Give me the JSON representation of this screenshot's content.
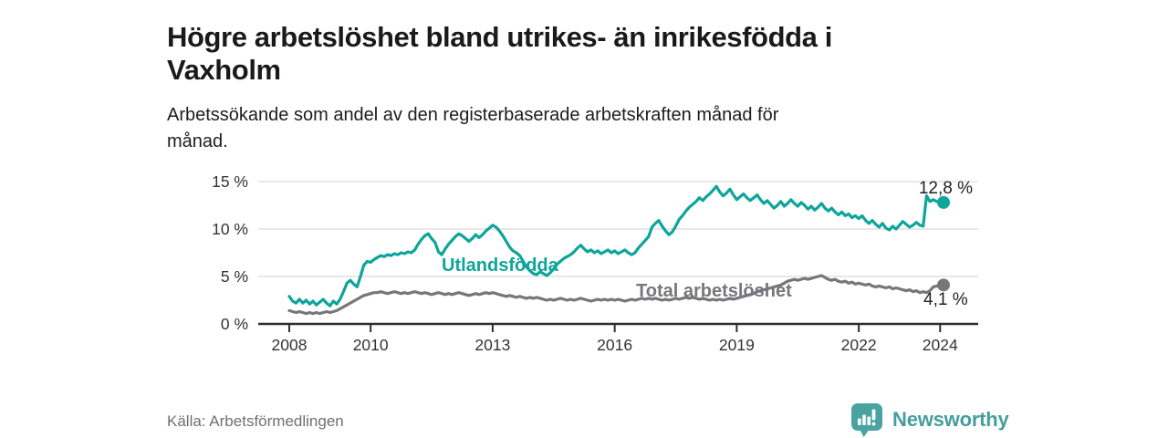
{
  "header": {
    "title": "Högre arbetslöshet bland utrikes- än inrikesfödda i\nVaxholm",
    "subtitle": "Arbetssökande som andel av den registerbaserade arbetskraften månad för\nmånad."
  },
  "footer": {
    "source": "Källa: Arbetsförmedlingen",
    "brand": "Newsworthy"
  },
  "colors": {
    "teal_line": "#0da59b",
    "gray_line": "#76767b",
    "grid": "#d9d9d9",
    "axis": "#2e2e2e",
    "tick_text": "#333333",
    "value_text": "#222222",
    "source_text": "#6f6f74",
    "brand_teal": "#4aa3a0"
  },
  "chart_data": {
    "type": "line",
    "title": "Högre arbetslöshet bland utrikes- än inrikesfödda i Vaxholm",
    "subtitle": "Arbetssökande som andel av den registerbaserade arbetskraften månad för månad.",
    "unit": "%",
    "x_unit": "month",
    "x_start": "2008-01",
    "x_end": "2024-02",
    "xlim": [
      2007.2,
      2024.95
    ],
    "ylim": [
      0,
      15.6
    ],
    "grid": "horizontal",
    "legend_position": "inline-labels",
    "x_ticks": [
      {
        "year": 2008,
        "label": "2008"
      },
      {
        "year": 2010,
        "label": "2010"
      },
      {
        "year": 2013,
        "label": "2013"
      },
      {
        "year": 2016,
        "label": "2016"
      },
      {
        "year": 2019,
        "label": "2019"
      },
      {
        "year": 2022,
        "label": "2022"
      },
      {
        "year": 2024,
        "label": "2024"
      }
    ],
    "y_ticks": [
      {
        "value": 0,
        "label": "0 %"
      },
      {
        "value": 5,
        "label": "5 %"
      },
      {
        "value": 10,
        "label": "10 %"
      },
      {
        "value": 15,
        "label": "15 %"
      }
    ],
    "series": [
      {
        "name": "Total arbetslöshet",
        "color": "#76767b",
        "inline_label": {
          "text": "Total arbetslöshet",
          "x": 697,
          "y": 325,
          "anchor": "start"
        },
        "end_label": {
          "text": "4,1 %",
          "x": 1012,
          "y": 334,
          "anchor": "start"
        },
        "end_value": 4.1,
        "values": [
          1.4,
          1.3,
          1.2,
          1.3,
          1.2,
          1.1,
          1.2,
          1.1,
          1.2,
          1.1,
          1.2,
          1.3,
          1.2,
          1.3,
          1.4,
          1.6,
          1.8,
          2.0,
          2.2,
          2.4,
          2.6,
          2.8,
          3.0,
          3.1,
          3.2,
          3.3,
          3.3,
          3.4,
          3.3,
          3.2,
          3.3,
          3.4,
          3.3,
          3.2,
          3.3,
          3.2,
          3.3,
          3.4,
          3.3,
          3.2,
          3.3,
          3.2,
          3.1,
          3.2,
          3.3,
          3.2,
          3.1,
          3.2,
          3.1,
          3.2,
          3.3,
          3.2,
          3.1,
          3.0,
          3.1,
          3.2,
          3.1,
          3.2,
          3.3,
          3.2,
          3.3,
          3.2,
          3.1,
          3.0,
          2.9,
          3.0,
          2.9,
          2.8,
          2.9,
          2.8,
          2.7,
          2.8,
          2.7,
          2.8,
          2.7,
          2.6,
          2.5,
          2.6,
          2.5,
          2.6,
          2.7,
          2.6,
          2.5,
          2.6,
          2.5,
          2.6,
          2.7,
          2.6,
          2.5,
          2.4,
          2.5,
          2.6,
          2.5,
          2.6,
          2.5,
          2.6,
          2.5,
          2.6,
          2.5,
          2.4,
          2.5,
          2.6,
          2.5,
          2.6,
          2.7,
          2.6,
          2.7,
          2.6,
          2.7,
          2.6,
          2.5,
          2.6,
          2.5,
          2.6,
          2.7,
          2.6,
          2.7,
          2.8,
          2.7,
          2.8,
          2.7,
          2.6,
          2.7,
          2.6,
          2.5,
          2.6,
          2.5,
          2.6,
          2.5,
          2.6,
          2.7,
          2.6,
          2.7,
          2.8,
          2.9,
          3.0,
          3.1,
          3.2,
          3.4,
          3.5,
          3.6,
          3.7,
          3.8,
          3.9,
          4.0,
          4.1,
          4.3,
          4.5,
          4.6,
          4.7,
          4.6,
          4.7,
          4.8,
          4.7,
          4.8,
          4.9,
          5.0,
          5.1,
          4.9,
          4.7,
          4.6,
          4.7,
          4.5,
          4.4,
          4.5,
          4.3,
          4.4,
          4.2,
          4.3,
          4.2,
          4.1,
          4.2,
          4.0,
          3.9,
          4.0,
          3.9,
          3.8,
          3.9,
          3.7,
          3.8,
          3.7,
          3.6,
          3.5,
          3.6,
          3.4,
          3.5,
          3.3,
          3.4,
          3.3,
          3.5,
          3.9,
          4.0,
          4.1,
          4.1
        ]
      },
      {
        "name": "Utlandsfödda",
        "color": "#0da59b",
        "inline_label": {
          "text": "Utlandsfödda",
          "x": 484,
          "y": 297,
          "anchor": "start"
        },
        "end_label": {
          "text": "12,8 %",
          "x": 1066,
          "y": 212,
          "anchor": "end"
        },
        "end_value": 12.8,
        "values": [
          2.9,
          2.4,
          2.2,
          2.6,
          2.2,
          2.5,
          2.1,
          2.4,
          2.0,
          2.3,
          2.6,
          2.2,
          1.9,
          2.4,
          2.1,
          2.6,
          3.4,
          4.3,
          4.6,
          4.2,
          3.9,
          5.0,
          6.2,
          6.6,
          6.5,
          6.8,
          7.0,
          7.2,
          7.1,
          7.3,
          7.2,
          7.4,
          7.3,
          7.5,
          7.4,
          7.6,
          7.5,
          7.8,
          8.4,
          8.9,
          9.3,
          9.5,
          9.0,
          8.6,
          7.6,
          7.3,
          7.9,
          8.4,
          8.8,
          9.2,
          9.5,
          9.3,
          9.0,
          8.7,
          9.0,
          9.4,
          9.1,
          9.4,
          9.8,
          10.1,
          10.4,
          10.2,
          9.8,
          9.3,
          8.7,
          8.1,
          7.7,
          7.5,
          7.2,
          6.6,
          6.0,
          5.6,
          5.3,
          5.2,
          5.5,
          5.3,
          5.1,
          5.4,
          5.8,
          6.3,
          6.6,
          6.9,
          7.1,
          7.3,
          7.6,
          8.0,
          8.3,
          7.9,
          7.6,
          7.8,
          7.5,
          7.7,
          7.4,
          7.6,
          7.8,
          7.5,
          7.7,
          7.4,
          7.6,
          7.8,
          7.5,
          7.3,
          7.5,
          8.0,
          8.4,
          8.8,
          9.2,
          10.2,
          10.6,
          10.9,
          10.3,
          9.8,
          9.4,
          9.7,
          10.3,
          11.0,
          11.4,
          11.9,
          12.3,
          12.6,
          12.9,
          13.3,
          13.0,
          13.4,
          13.7,
          14.1,
          14.5,
          13.9,
          13.5,
          13.8,
          14.2,
          13.6,
          13.1,
          13.4,
          13.7,
          13.3,
          13.0,
          13.3,
          13.6,
          13.1,
          12.7,
          13.0,
          12.6,
          12.2,
          12.5,
          12.9,
          12.4,
          12.7,
          13.1,
          12.7,
          12.4,
          12.8,
          12.5,
          12.1,
          12.4,
          12.0,
          12.3,
          12.7,
          12.2,
          11.9,
          12.2,
          11.8,
          11.5,
          11.8,
          11.4,
          11.6,
          11.2,
          11.4,
          11.1,
          11.4,
          10.9,
          10.6,
          10.9,
          10.5,
          10.2,
          10.6,
          10.1,
          9.9,
          10.3,
          10.0,
          10.4,
          10.8,
          10.5,
          10.2,
          10.4,
          10.7,
          10.4,
          10.3,
          13.5,
          12.9,
          13.1,
          12.9,
          12.8,
          12.8
        ]
      }
    ]
  }
}
